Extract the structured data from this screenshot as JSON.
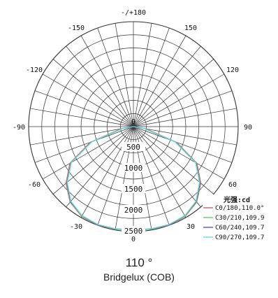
{
  "chart_data": {
    "type": "polar-line",
    "unit_label": "光强:cd",
    "angle_labels": [
      "0",
      "30",
      "60",
      "90",
      "120",
      "150",
      "-/+180",
      "-150",
      "-120",
      "-90",
      "-60",
      "-30"
    ],
    "angle_values": [
      0,
      30,
      60,
      90,
      120,
      150,
      180,
      -150,
      -120,
      -90,
      -60,
      -30
    ],
    "radial_labels": [
      "500",
      "1000",
      "1500",
      "2000",
      "2500"
    ],
    "radial_values": [
      500,
      1000,
      1500,
      2000,
      2500
    ],
    "rmax": 2500,
    "series": [
      {
        "name": "C0/180,110.0°",
        "color": "#e05a5a",
        "angles": [
          -90,
          -80,
          -70,
          -60,
          -50,
          -40,
          -30,
          -20,
          -10,
          0,
          10,
          20,
          30,
          40,
          50,
          60,
          70,
          80,
          90
        ],
        "values": [
          0,
          300,
          1100,
          1750,
          2100,
          2350,
          2470,
          2500,
          2480,
          2470,
          2480,
          2500,
          2470,
          2350,
          2100,
          1750,
          1100,
          300,
          0
        ]
      },
      {
        "name": "C30/210,109.9",
        "color": "#66cc66",
        "angles": [
          -90,
          -80,
          -70,
          -60,
          -50,
          -40,
          -30,
          -20,
          -10,
          0,
          10,
          20,
          30,
          40,
          50,
          60,
          70,
          80,
          90
        ],
        "values": [
          0,
          280,
          1080,
          1730,
          2080,
          2340,
          2460,
          2490,
          2480,
          2470,
          2480,
          2490,
          2460,
          2340,
          2080,
          1730,
          1080,
          280,
          0
        ]
      },
      {
        "name": "C60/240,109.7",
        "color": "#5555bb",
        "angles": [
          -90,
          -80,
          -70,
          -60,
          -50,
          -40,
          -30,
          -20,
          -10,
          0,
          10,
          20,
          30,
          40,
          50,
          60,
          70,
          80,
          90
        ],
        "values": [
          0,
          260,
          1060,
          1720,
          2070,
          2330,
          2450,
          2490,
          2470,
          2460,
          2470,
          2490,
          2450,
          2330,
          2070,
          1720,
          1060,
          260,
          0
        ]
      },
      {
        "name": "C90/270,109.7",
        "color": "#66dddd",
        "angles": [
          -90,
          -80,
          -70,
          -60,
          -50,
          -40,
          -30,
          -20,
          -10,
          0,
          10,
          20,
          30,
          40,
          50,
          60,
          70,
          80,
          90
        ],
        "values": [
          0,
          250,
          1050,
          1710,
          2060,
          2320,
          2450,
          2480,
          2470,
          2460,
          2470,
          2480,
          2450,
          2320,
          2060,
          1710,
          1050,
          250,
          0
        ]
      }
    ]
  },
  "caption": {
    "beam_angle": "110 °",
    "model": "Bridgelux (COB)"
  }
}
